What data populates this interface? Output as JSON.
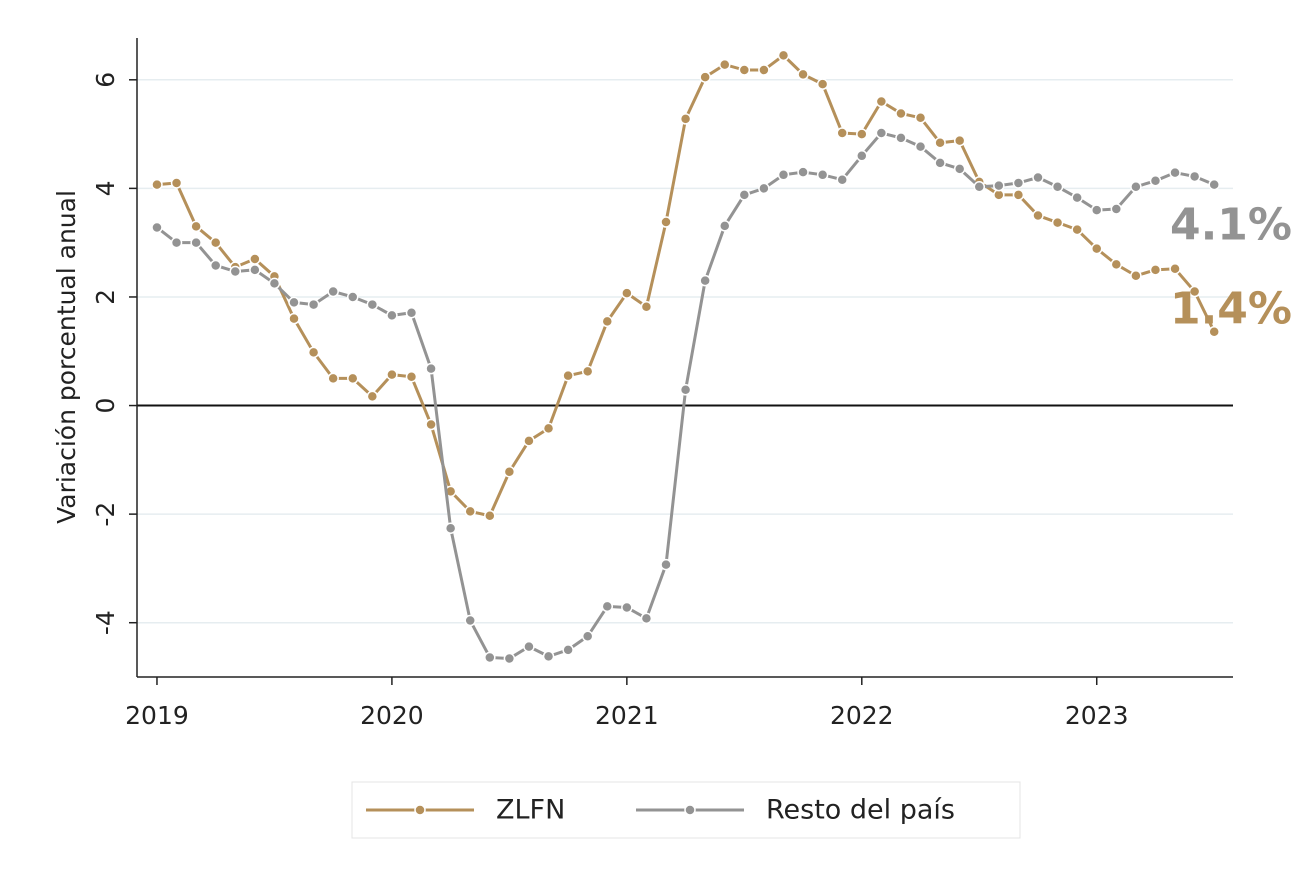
{
  "chart_data": {
    "type": "line",
    "y_label": "Variación porcentual anual",
    "x": [
      2019,
      2019.0833,
      2019.1667,
      2019.25,
      2019.3333,
      2019.4167,
      2019.5,
      2019.5833,
      2019.6667,
      2019.75,
      2019.8333,
      2019.9167,
      2020,
      2020.0833,
      2020.1667,
      2020.25,
      2020.3333,
      2020.4167,
      2020.5,
      2020.5833,
      2020.6667,
      2020.75,
      2020.8333,
      2020.9167,
      2021,
      2021.0833,
      2021.1667,
      2021.25,
      2021.3333,
      2021.4167,
      2021.5,
      2021.5833,
      2021.6667,
      2021.75,
      2021.8333,
      2021.9167,
      2022,
      2022.0833,
      2022.1667,
      2022.25,
      2022.3333,
      2022.4167,
      2022.5,
      2022.5833,
      2022.6667,
      2022.75,
      2022.8333,
      2022.9167,
      2023,
      2023.0833,
      2023.1667,
      2023.25,
      2023.3333,
      2023.4167,
      2023.5
    ],
    "series": [
      {
        "name": "ZLFN",
        "color": "#b5905a",
        "values": [
          4.07,
          4.1,
          3.3,
          3.0,
          2.55,
          2.7,
          2.38,
          1.6,
          0.98,
          0.5,
          0.5,
          0.17,
          0.57,
          0.53,
          -0.35,
          -1.58,
          -1.95,
          -2.03,
          -1.22,
          -0.65,
          -0.42,
          0.55,
          0.63,
          1.55,
          2.07,
          1.82,
          3.38,
          5.28,
          6.05,
          6.28,
          6.18,
          6.18,
          6.45,
          6.1,
          5.92,
          5.02,
          5.0,
          5.6,
          5.38,
          5.3,
          4.84,
          4.88,
          4.12,
          3.88,
          3.88,
          3.5,
          3.37,
          3.24,
          2.89,
          2.6,
          2.39,
          2.5,
          2.52,
          2.1,
          1.36
        ],
        "value_labels": [
          null,
          null,
          null,
          null,
          null,
          null,
          null,
          null,
          null,
          null,
          null,
          null,
          null,
          null,
          null,
          null,
          null,
          null,
          null,
          null,
          null,
          null,
          null,
          null,
          null,
          null,
          null,
          null,
          null,
          null,
          null,
          null,
          null,
          null,
          null,
          null,
          null,
          null,
          null,
          null,
          null,
          null,
          null,
          null,
          null,
          null,
          null,
          null,
          null,
          null,
          null,
          null,
          null,
          null,
          "1.4%"
        ]
      },
      {
        "name": "Resto del país",
        "color": "#939393",
        "values": [
          3.28,
          3.0,
          3.0,
          2.58,
          2.47,
          2.5,
          2.25,
          1.9,
          1.86,
          2.1,
          2.0,
          1.86,
          1.66,
          1.71,
          0.68,
          -2.26,
          -3.96,
          -4.64,
          -4.66,
          -4.44,
          -4.62,
          -4.5,
          -4.25,
          -3.7,
          -3.72,
          -3.92,
          -2.93,
          0.29,
          2.3,
          3.31,
          3.88,
          4.0,
          4.25,
          4.3,
          4.25,
          4.16,
          4.6,
          5.02,
          4.93,
          4.77,
          4.47,
          4.36,
          4.03,
          4.05,
          4.1,
          4.2,
          4.03,
          3.83,
          3.6,
          3.62,
          4.03,
          4.14,
          4.29,
          4.22,
          4.07
        ],
        "value_labels": [
          null,
          null,
          null,
          null,
          null,
          null,
          null,
          null,
          null,
          null,
          null,
          null,
          null,
          null,
          null,
          null,
          null,
          null,
          null,
          null,
          null,
          null,
          null,
          null,
          null,
          null,
          null,
          null,
          null,
          null,
          null,
          null,
          null,
          null,
          null,
          null,
          null,
          null,
          null,
          null,
          null,
          null,
          null,
          null,
          null,
          null,
          null,
          null,
          null,
          null,
          null,
          null,
          null,
          null,
          "4.1%"
        ]
      }
    ],
    "xlim": [
      2018.915,
      2023.58
    ],
    "xticks": [
      2019,
      2020,
      2021,
      2022,
      2023
    ],
    "ylim": [
      -5,
      6.77
    ],
    "yticks": [
      -4,
      -2,
      0,
      2,
      4,
      6
    ],
    "grid": true,
    "legend": "bottom"
  }
}
